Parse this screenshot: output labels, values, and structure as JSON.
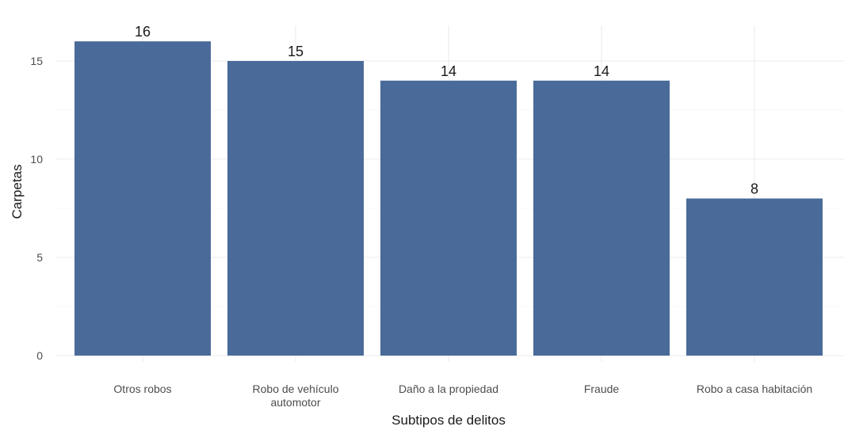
{
  "chart_data": {
    "type": "bar",
    "categories": [
      "Otros robos",
      "Robo de vehículo automotor",
      "Daño a la propiedad",
      "Fraude",
      "Robo a casa habitación"
    ],
    "category_lines": [
      [
        "Otros robos"
      ],
      [
        "Robo de vehículo",
        "automotor"
      ],
      [
        "Daño a la propiedad"
      ],
      [
        "Fraude"
      ],
      [
        "Robo a casa habitación"
      ]
    ],
    "values": [
      16,
      15,
      14,
      14,
      8
    ],
    "value_labels": [
      "16",
      "15",
      "14",
      "14",
      "8"
    ],
    "title": "",
    "xlabel": "Subtipos de delitos",
    "ylabel": "Carpetas",
    "yticks": [
      0,
      5,
      10,
      15
    ],
    "ytick_labels": [
      "0",
      "5",
      "10",
      "15"
    ],
    "ylim": [
      0,
      16.8
    ],
    "grid": true,
    "legend": "none",
    "bar_color": "#4a6b9a"
  }
}
